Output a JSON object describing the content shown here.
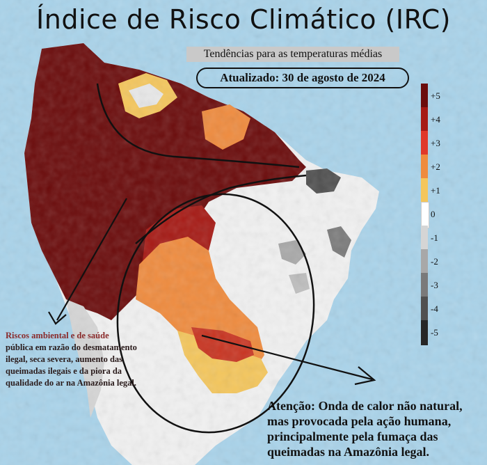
{
  "title": "Índice de Risco Climático (IRC)",
  "subtitle": "Tendências para as temperaturas médias",
  "updated": "Atualizado: 30 de agosto de 2024",
  "legend": {
    "items": [
      {
        "label": "+5",
        "color": "#6b0c0c"
      },
      {
        "label": "+4",
        "color": "#a61a15"
      },
      {
        "label": "+3",
        "color": "#e0382a"
      },
      {
        "label": "+2",
        "color": "#ef8b3e"
      },
      {
        "label": "+1",
        "color": "#f4c65c"
      },
      {
        "label": "0",
        "color": "#ffffff"
      },
      {
        "label": "-1",
        "color": "#d5d5d5"
      },
      {
        "label": "-2",
        "color": "#a8a8a8"
      },
      {
        "label": "-3",
        "color": "#7a7a7a"
      },
      {
        "label": "-4",
        "color": "#505050"
      },
      {
        "label": "-5",
        "color": "#262626"
      }
    ]
  },
  "annotations": {
    "left_heading": "Riscos ambiental e de saúde",
    "left_body": "pública em razão do desmatamento ilegal, seca severa, aumento das queimadas ilegais e da piora da qualidade do ar na Amazônia legal.",
    "right_text": "Atenção: Onda de calor não natural, mas provocada pela ação humana, principalmente pela fumaça das queimadas na Amazônia legal."
  },
  "colors": {
    "ocean": "#a9d3ea",
    "land_outside": "#eeeeee",
    "deep_red": "#6b0c0c",
    "orange": "#ef8b3e",
    "yellow": "#f4c65c"
  }
}
